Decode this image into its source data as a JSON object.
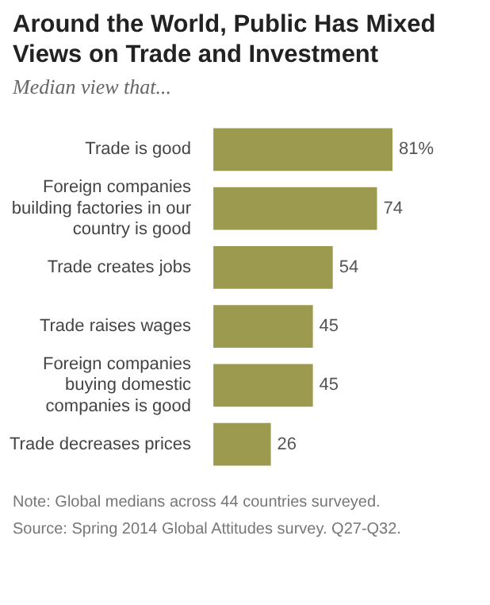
{
  "chart_data": {
    "type": "bar",
    "orientation": "horizontal",
    "title": "Around the World, Public Has Mixed Views on Trade and Investment",
    "subtitle": "Median view that...",
    "categories": [
      "Trade is good",
      "Foreign companies building factories in our country is good",
      "Trade creates jobs",
      "Trade raises wages",
      "Foreign companies buying domestic companies is good",
      "Trade decreases prices"
    ],
    "values": [
      81,
      74,
      54,
      45,
      45,
      26
    ],
    "color": "#9c9a4e",
    "value_labels": [
      "81%",
      "74",
      "54",
      "45",
      "45",
      "26"
    ],
    "legend": false,
    "annotations": [
      "Note: Global medians across 44 countries surveyed.",
      "Source: Spring 2014 Global Attitudes survey. Q27-Q32."
    ]
  }
}
